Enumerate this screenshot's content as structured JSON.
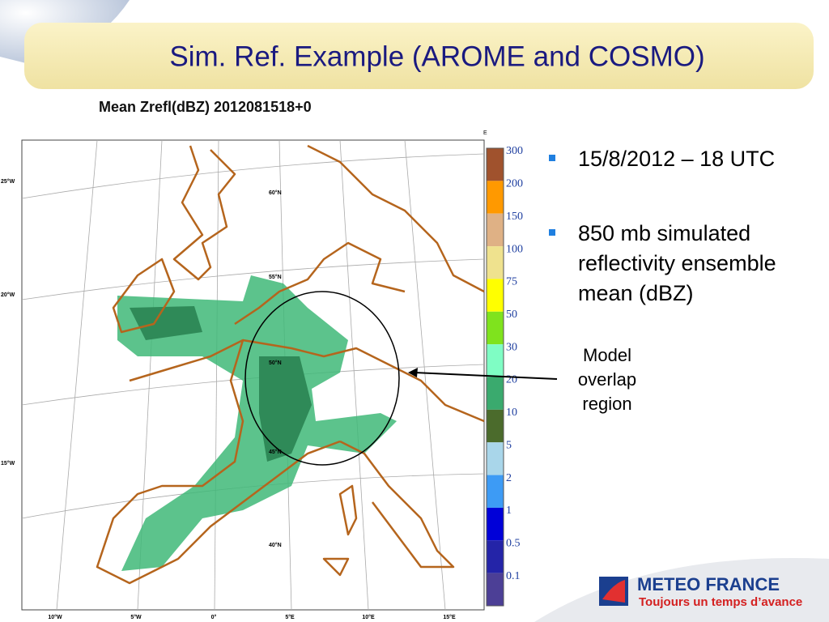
{
  "header": {
    "title": "Sim. Ref. Example (AROME and COSMO)"
  },
  "map": {
    "title": "Mean Zrefl(dBZ) 2012081518+0",
    "corner_label": "E",
    "lat_labels": [
      "60°N",
      "55°N",
      "50°N",
      "45°N",
      "40°N"
    ],
    "left_labels": [
      "25°W",
      "20°W",
      "15°W"
    ],
    "bottom_labels": [
      "10°W",
      "5°W",
      "0°",
      "5°E",
      "10°E",
      "15°E"
    ],
    "legend": [
      {
        "label": "300",
        "color": "#a0522d"
      },
      {
        "label": "200",
        "color": "#ff9900"
      },
      {
        "label": "150",
        "color": "#dfb185"
      },
      {
        "label": "100",
        "color": "#efe28e"
      },
      {
        "label": "75",
        "color": "#ffff00"
      },
      {
        "label": "50",
        "color": "#7fe31d"
      },
      {
        "label": "30",
        "color": "#7ffdc4"
      },
      {
        "label": "20",
        "color": "#3aaa6e"
      },
      {
        "label": "10",
        "color": "#4b6b2c"
      },
      {
        "label": "5",
        "color": "#a9d6ea"
      },
      {
        "label": "2",
        "color": "#3d9bf5"
      },
      {
        "label": "1",
        "color": "#0000d8"
      },
      {
        "label": "0.5",
        "color": "#2424a8"
      },
      {
        "label": "0.1",
        "color": "#4c3f96"
      }
    ]
  },
  "bullets": [
    "15/8/2012 – 18 UTC",
    "850 mb simulated reflectivity ensemble mean (dBZ)"
  ],
  "annotation": [
    "Model",
    "overlap",
    "region"
  ],
  "logo": {
    "name": "METEO FRANCE",
    "tagline": "Toujours un temps d’avance"
  }
}
